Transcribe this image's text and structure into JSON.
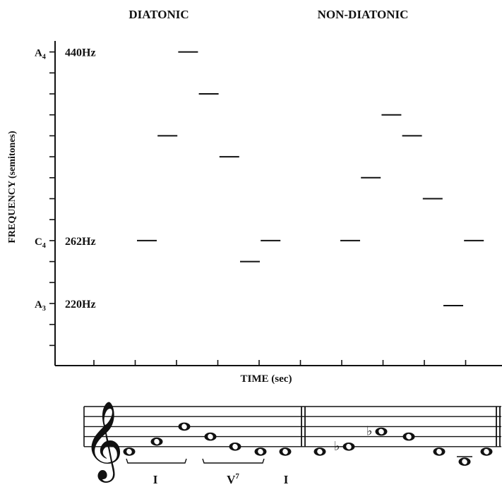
{
  "headers": {
    "diatonic": "DIATONIC",
    "non_diatonic": "NON-DIATONIC"
  },
  "y_axis": {
    "label": "FREQUENCY (semitones)",
    "markers": [
      {
        "note_letter": "A",
        "note_octave": "4",
        "freq": "440Hz",
        "semitone": 12
      },
      {
        "note_letter": "C",
        "note_octave": "4",
        "freq": "262Hz",
        "semitone": 3
      },
      {
        "note_letter": "A",
        "note_octave": "3",
        "freq": "220Hz",
        "semitone": 0
      }
    ]
  },
  "x_axis": {
    "label": "TIME (sec)"
  },
  "sequences": {
    "diatonic": [
      3,
      8,
      12,
      10,
      7,
      2,
      3
    ],
    "non_diatonic": [
      3,
      6,
      9,
      8,
      5,
      -0.1,
      3
    ]
  },
  "staff": {
    "diatonic_notes": [
      {
        "step": -1,
        "accidental": ""
      },
      {
        "step": 1,
        "accidental": ""
      },
      {
        "step": 4,
        "accidental": ""
      },
      {
        "step": 2,
        "accidental": ""
      },
      {
        "step": 0,
        "accidental": ""
      },
      {
        "step": -1,
        "accidental": ""
      },
      {
        "step": -1,
        "accidental": ""
      }
    ],
    "non_diatonic_notes": [
      {
        "step": -1,
        "accidental": ""
      },
      {
        "step": 0,
        "accidental": "♭"
      },
      {
        "step": 3,
        "accidental": "♭"
      },
      {
        "step": 2,
        "accidental": ""
      },
      {
        "step": -1,
        "accidental": ""
      },
      {
        "step": -3,
        "accidental": ""
      },
      {
        "step": -1,
        "accidental": ""
      }
    ],
    "chords": [
      {
        "label": "I",
        "superscript": ""
      },
      {
        "label": "V",
        "superscript": "7"
      },
      {
        "label": "I",
        "superscript": ""
      }
    ]
  }
}
